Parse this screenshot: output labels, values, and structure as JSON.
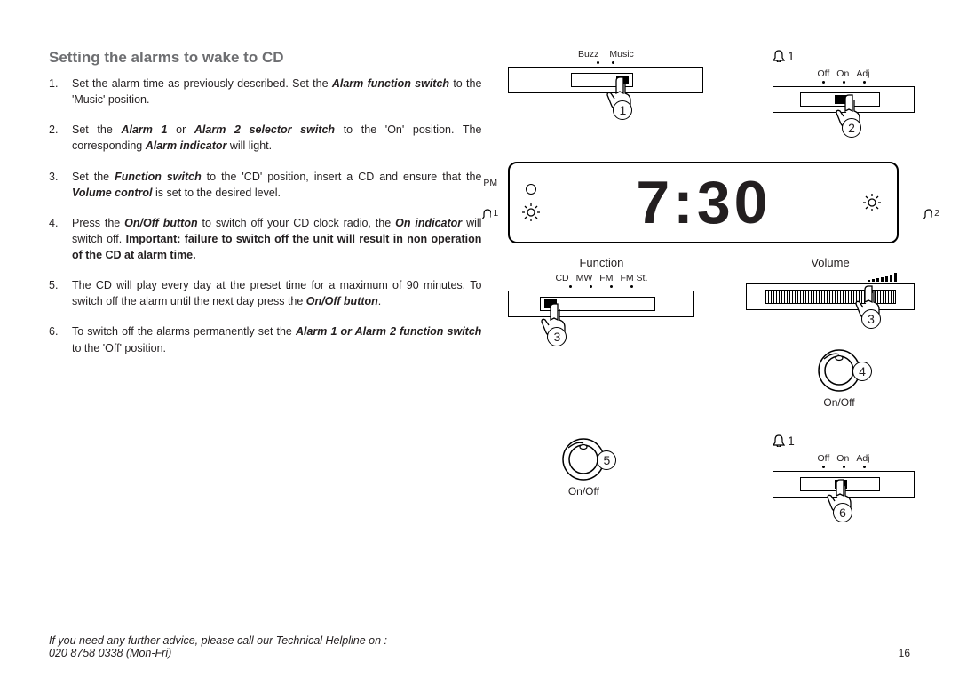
{
  "title": "Setting the alarms to wake to CD",
  "steps": [
    {
      "n": "1.",
      "html": "Set the alarm time as previously described. Set the <span class='bi'>Alarm function switch</span> to the 'Music' position."
    },
    {
      "n": "2.",
      "html": "Set the <span class='bi'>Alarm 1</span> or <span class='bi'>Alarm 2 selector switch</span> to the 'On' position. The corresponding <span class='bi'>Alarm indicator</span> will light."
    },
    {
      "n": "3.",
      "html": "Set the <span class='bi'>Function switch</span> to the 'CD' position, insert a CD and ensure that the <span class='bi'>Volume control</span> is set to the desired level."
    },
    {
      "n": "4.",
      "html": "Press the <span class='bi'>On/Off button</span> to switch off your CD clock radio, the <span class='bi'>On indicator</span> will switch off. <span class='b'>Important: failure to switch off the unit will result in non operation of the CD at alarm time.</span>"
    },
    {
      "n": "5.",
      "html": "The CD will play every day at the preset time for a maximum of 90 minutes. To switch off the alarm until the next day press the <span class='bi'>On/Off button</span>."
    },
    {
      "n": "6.",
      "html": "To switch off the alarms permanently set the <span class='bi'>Alarm 1 or Alarm 2 function switch</span> to the 'Off' position."
    }
  ],
  "switches": {
    "buzz_music": {
      "labels": [
        "Buzz",
        "Music"
      ],
      "hand_num": "1"
    },
    "alarm1": {
      "bell": "1",
      "labels": [
        "Off",
        "On",
        "Adj"
      ],
      "hand_num": "2"
    },
    "function": {
      "title": "Function",
      "labels": [
        "CD",
        "MW",
        "FM",
        "FM St."
      ],
      "hand_num": "3"
    },
    "volume": {
      "title": "Volume",
      "hand_num": "3"
    },
    "onoff1": {
      "hand_num": "4",
      "label": "On/Off"
    },
    "onoff2": {
      "hand_num": "5",
      "label": "On/Off"
    },
    "alarm1b": {
      "bell": "1",
      "labels": [
        "Off",
        "On",
        "Adj"
      ],
      "hand_num": "6"
    }
  },
  "clock": {
    "time": "7:30",
    "pm": "PM",
    "left_bell": "1",
    "right_bell": "2"
  },
  "helpline": {
    "line1": "If you need any further advice, please call our Technical Helpline on :-",
    "line2": "020 8758 0338 (Mon-Fri)"
  },
  "page_number": "16"
}
